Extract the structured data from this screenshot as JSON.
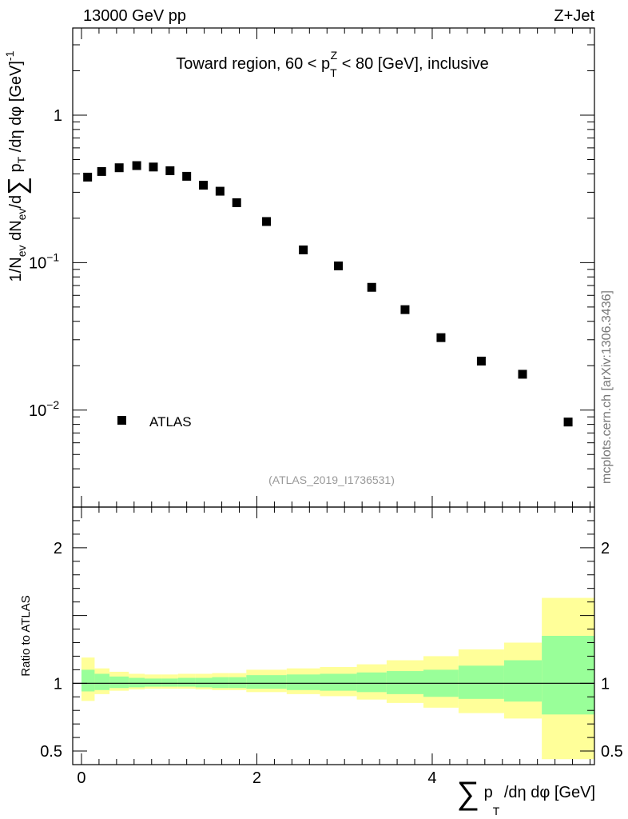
{
  "header": {
    "left_label": "13000 GeV pp",
    "right_label": "Z+Jet",
    "side_label": "mcplots.cern.ch [arXiv:1306.3436]"
  },
  "chart_data": [
    {
      "type": "scatter",
      "title": "Toward region, 60 < p_T^Z < 80 [GeV], inclusive",
      "title_parts": {
        "pre": "Toward region, 60 < p",
        "sub": "T",
        "sup": "Z",
        "post": " < 80 [GeV], inclusive"
      },
      "ylabel": "1/N_ev dN_ev/d Σ p_T /dη dφ [GeV]^-1",
      "ylabel_parts": {
        "a": "1/N",
        "a_sub": "ev",
        "b": " dN",
        "b_sub": "ev",
        "c": "/d",
        "sigma": "∑",
        "d": " p",
        "d_sub": "T",
        "e": " /dη dφ  [GeV]",
        "e_sup": "-1"
      },
      "yscale": "log",
      "ylim": [
        0.0022,
        3.9
      ],
      "xlim": [
        -0.1,
        5.85
      ],
      "ytick_labels": [
        {
          "value": 1,
          "base": "1",
          "exp": ""
        },
        {
          "value": 0.1,
          "base": "10",
          "exp": "−1"
        },
        {
          "value": 0.01,
          "base": "10",
          "exp": "−2"
        }
      ],
      "legend": {
        "entry": "ATLAS",
        "placement": "bottom-left"
      },
      "watermark": "(ATLAS_2019_I1736531)",
      "series": [
        {
          "name": "ATLAS",
          "marker": "square",
          "x": [
            0.07,
            0.23,
            0.43,
            0.63,
            0.82,
            1.01,
            1.2,
            1.39,
            1.58,
            1.77,
            2.11,
            2.53,
            2.93,
            3.31,
            3.69,
            4.1,
            4.56,
            5.03,
            5.55
          ],
          "y": [
            0.38,
            0.415,
            0.44,
            0.455,
            0.445,
            0.42,
            0.385,
            0.335,
            0.305,
            0.255,
            0.19,
            0.122,
            0.095,
            0.068,
            0.048,
            0.031,
            0.0215,
            0.0175,
            0.0083
          ]
        }
      ]
    },
    {
      "type": "area",
      "ylabel": "Ratio to ATLAS",
      "xlabel": "Σ p_T /dη dφ [GeV]",
      "xlabel_parts": {
        "sigma": "∑",
        "a": " p",
        "a_sub": "T",
        "b": " /dη dφ [GeV]"
      },
      "xlim": [
        -0.1,
        5.85
      ],
      "ylim": [
        0.4,
        2.3
      ],
      "xtick_labels": [
        "0",
        "2",
        "4"
      ],
      "xtick_values": [
        0,
        2,
        4
      ],
      "ytick_labels": [
        "0.5",
        "1",
        "2"
      ],
      "ytick_values": [
        0.5,
        1,
        2
      ],
      "reference_line": 1,
      "bands": {
        "edges": [
          0.0,
          0.15,
          0.32,
          0.54,
          0.72,
          0.92,
          1.1,
          1.3,
          1.49,
          1.68,
          1.88,
          2.34,
          2.72,
          3.14,
          3.48,
          3.9,
          4.3,
          4.82,
          5.25,
          5.85
        ],
        "outer_low": [
          0.87,
          0.92,
          0.945,
          0.955,
          0.96,
          0.96,
          0.96,
          0.955,
          0.95,
          0.95,
          0.935,
          0.92,
          0.905,
          0.88,
          0.855,
          0.82,
          0.78,
          0.74,
          0.44
        ],
        "outer_high": [
          1.19,
          1.11,
          1.085,
          1.07,
          1.065,
          1.065,
          1.07,
          1.07,
          1.075,
          1.075,
          1.1,
          1.11,
          1.12,
          1.14,
          1.17,
          1.2,
          1.25,
          1.3,
          1.63
        ],
        "inner_low": [
          0.94,
          0.95,
          0.965,
          0.97,
          0.975,
          0.975,
          0.975,
          0.97,
          0.965,
          0.965,
          0.96,
          0.95,
          0.945,
          0.935,
          0.92,
          0.9,
          0.885,
          0.865,
          0.77
        ],
        "inner_high": [
          1.1,
          1.07,
          1.05,
          1.04,
          1.035,
          1.035,
          1.04,
          1.04,
          1.045,
          1.045,
          1.06,
          1.065,
          1.07,
          1.08,
          1.09,
          1.1,
          1.13,
          1.17,
          1.35
        ]
      }
    }
  ],
  "colors": {
    "outer_band": "#ffff99",
    "inner_band": "#99ff99",
    "marker": "#000000",
    "watermark": "#999999",
    "side_label": "#777777"
  }
}
